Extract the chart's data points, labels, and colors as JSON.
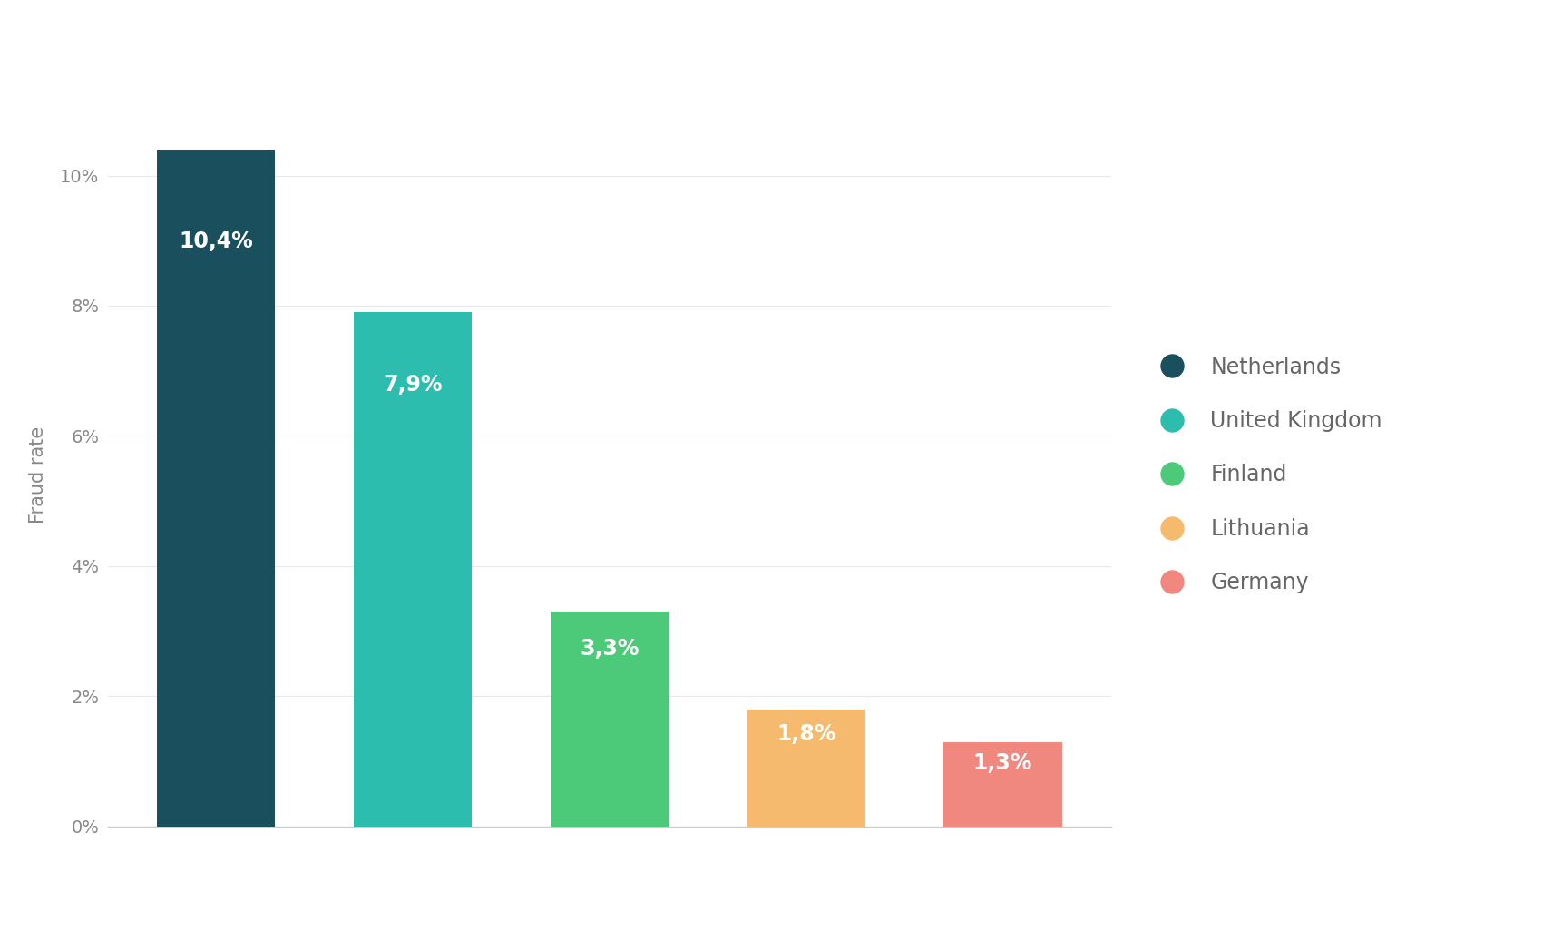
{
  "categories": [
    "Netherlands",
    "United Kingdom",
    "Finland",
    "Lithuania",
    "Germany"
  ],
  "values": [
    10.4,
    7.9,
    3.3,
    1.8,
    1.3
  ],
  "labels": [
    "10,4%",
    "7,9%",
    "3,3%",
    "1,8%",
    "1,3%"
  ],
  "bar_colors": [
    "#1a4f5e",
    "#2dbdaf",
    "#4dc97a",
    "#f5ba6e",
    "#f08880"
  ],
  "ylabel": "Fraud rate",
  "ylim": [
    0,
    10.8
  ],
  "yticks": [
    0,
    2,
    4,
    6,
    8,
    10
  ],
  "ytick_labels": [
    "0%",
    "2%",
    "4%",
    "6%",
    "8%",
    "10%"
  ],
  "background_color": "#ffffff",
  "legend_colors": [
    "#1a4f5e",
    "#2dbdaf",
    "#4dc97a",
    "#f5ba6e",
    "#f08880"
  ],
  "legend_labels": [
    "Netherlands",
    "United Kingdom",
    "Finland",
    "Lithuania",
    "Germany"
  ],
  "label_fontsize": 17,
  "axis_label_fontsize": 15,
  "tick_fontsize": 14,
  "legend_fontsize": 17
}
